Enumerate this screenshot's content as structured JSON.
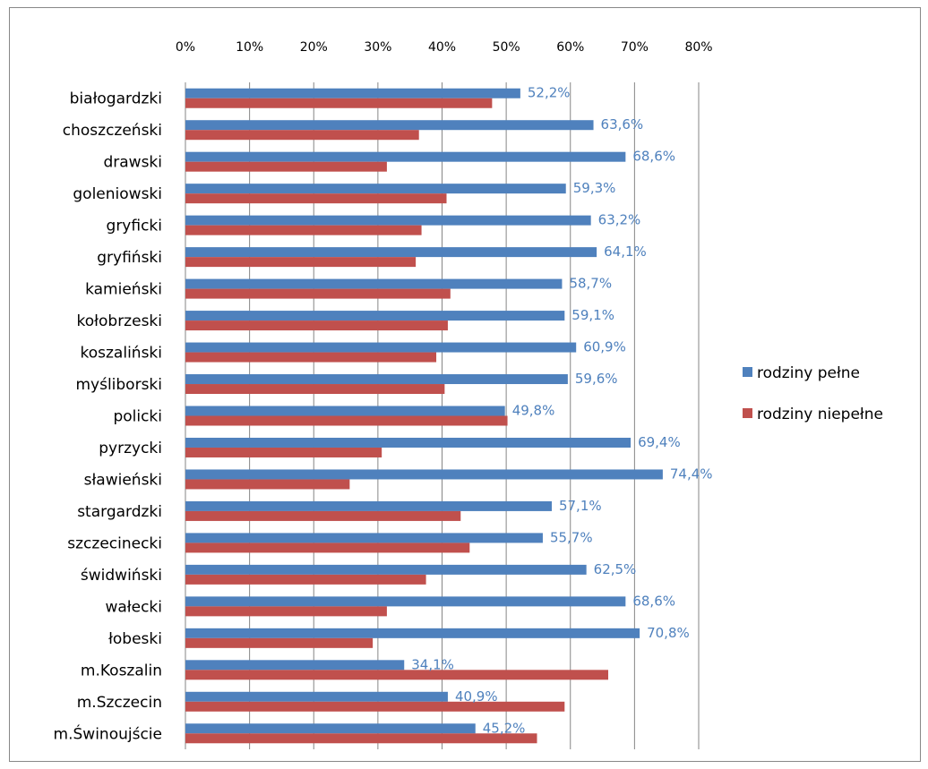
{
  "chart_data": {
    "type": "bar",
    "orientation": "horizontal",
    "x_axis_position": "top",
    "xlim": [
      0,
      80
    ],
    "x_ticks": [
      "0%",
      "10%",
      "20%",
      "30%",
      "40%",
      "50%",
      "60%",
      "70%",
      "80%"
    ],
    "grid": true,
    "legend_position": "right",
    "categories": [
      "białogardzki",
      "choszczeński",
      "drawski",
      "goleniowski",
      "gryficki",
      "gryfiński",
      "kamieński",
      "kołobrzeski",
      "koszaliński",
      "myśliborski",
      "policki",
      "pyrzycki",
      "sławieński",
      "stargardzki",
      "szczecinecki",
      "świdwiński",
      "wałecki",
      "łobeski",
      "m.Koszalin",
      "m.Szczecin",
      "m.Świnoujście"
    ],
    "series": [
      {
        "name": "rodziny pełne",
        "color": "#4F81BD",
        "values": [
          52.2,
          63.6,
          68.6,
          59.3,
          63.2,
          64.1,
          58.7,
          59.1,
          60.9,
          59.6,
          49.8,
          69.4,
          74.4,
          57.1,
          55.7,
          62.5,
          68.6,
          70.8,
          34.1,
          40.9,
          45.2
        ],
        "data_labels": [
          "52,2%",
          "63,6%",
          "68,6%",
          "59,3%",
          "63,2%",
          "64,1%",
          "58,7%",
          "59,1%",
          "60,9%",
          "59,6%",
          "49,8%",
          "69,4%",
          "74,4%",
          "57,1%",
          "55,7%",
          "62,5%",
          "68,6%",
          "70,8%",
          "34,1%",
          "40,9%",
          "45,2%"
        ]
      },
      {
        "name": "rodziny niepełne",
        "color": "#C0504D",
        "values": [
          47.8,
          36.4,
          31.4,
          40.7,
          36.8,
          35.9,
          41.3,
          40.9,
          39.1,
          40.4,
          50.2,
          30.6,
          25.6,
          42.9,
          44.3,
          37.5,
          31.4,
          29.2,
          65.9,
          59.1,
          54.8
        ]
      }
    ],
    "data_label_color": "#4F81BD"
  }
}
